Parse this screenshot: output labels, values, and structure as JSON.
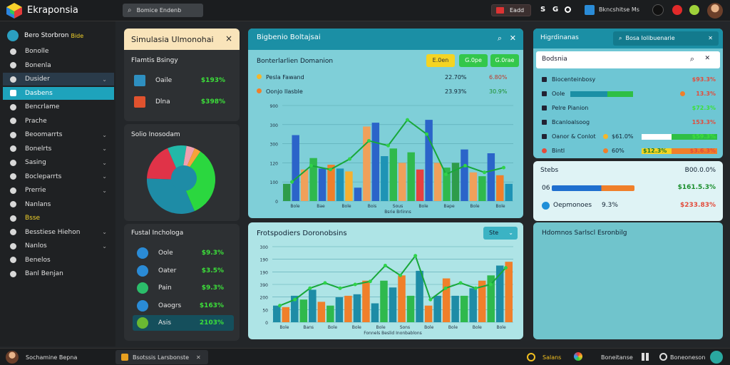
{
  "app": {
    "title": "Ekraponsia",
    "search_placeholder": "Bomice Endenb",
    "top_badge": "Eadd",
    "icon_labels": [
      "S",
      "G"
    ]
  },
  "sidebar": {
    "header": "Bero Storbron",
    "header_badge": "Bide",
    "items": [
      {
        "label": "Bonolle"
      },
      {
        "label": "Bonenla"
      },
      {
        "label": "Dusider"
      },
      {
        "label": "Dasbens"
      },
      {
        "label": "Bencrlame"
      },
      {
        "label": "Prache"
      },
      {
        "label": "Beoomarrts"
      },
      {
        "label": "Bonelrts"
      },
      {
        "label": "Sasing"
      },
      {
        "label": "Bocleparrts"
      },
      {
        "label": "Prerrie"
      },
      {
        "label": "Nanlans"
      },
      {
        "label": "Bsse"
      },
      {
        "label": "Besstiese Hiehon"
      },
      {
        "label": "Nanlos"
      },
      {
        "label": "Benelos"
      },
      {
        "label": "Banl Benjan"
      }
    ]
  },
  "panel_simulasia": {
    "title": "Simulasia Ulmonohai",
    "close": "×",
    "sub": "Flamtis Bsingy",
    "rows": [
      {
        "label": "Oaile",
        "value": "$193%"
      },
      {
        "label": "Dlna",
        "value": "$398%"
      }
    ]
  },
  "panel_pie": {
    "title": "Solio Inosodam",
    "values": [
      34,
      32,
      18,
      9,
      4,
      3
    ],
    "colors": [
      "#2bd73f",
      "#1e8ca6",
      "#e03348",
      "#22b8a8",
      "#f0a0b0",
      "#f7a23a"
    ]
  },
  "panel_fund": {
    "title": "Fustal Inchologa",
    "rows": [
      {
        "label": "Oole",
        "value": "$9.3%"
      },
      {
        "label": "Oater",
        "value": "$3.5%"
      },
      {
        "label": "Pain",
        "value": "$9.3%"
      },
      {
        "label": "Oaogrs",
        "value": "$163%"
      },
      {
        "label": "Asis",
        "value": "2103%"
      }
    ]
  },
  "panel_chart1": {
    "title": "Bigbenio Boltajsai",
    "subtitle": "Bonterlarlien Domanion",
    "tabs": [
      "E.0en",
      "G.0pe",
      "G.0rae"
    ],
    "legend": [
      {
        "label": "Pesla Fawand",
        "v1": "22.70%",
        "v2": "6.80%"
      },
      {
        "label": "Oonjo Ilasble",
        "v1": "23.93%",
        "v2": "30.9%"
      }
    ],
    "xlabels": [
      "Bole",
      "Bae",
      "Bole",
      "Bois",
      "Sous",
      "Bole",
      "Bape",
      "Bole",
      "Bole"
    ],
    "xtitle": "Bsrie Brlinns"
  },
  "panel_chart2": {
    "title": "Frotspodiers Doronobsins",
    "tab": "Ste",
    "xlabels": [
      "Bole",
      "Bans",
      "Bole",
      "Bole",
      "Bole",
      "Sons",
      "Bole",
      "Bole",
      "Bole",
      "Bole"
    ],
    "xtitle": "Fonnels Beslid Inonbablons"
  },
  "panel_hidonas": {
    "title": "Higrdinanas",
    "search": "Bosa Iolibuenarie",
    "sub": "Bodsnia",
    "rows": [
      {
        "label": "Biocenteinbosy",
        "value": "$93.3%",
        "cls": "neg"
      },
      {
        "label": "Oole",
        "value": "13.3%",
        "cls": "neg"
      },
      {
        "label": "Pelre Pianion",
        "value": "$72.3%",
        "cls": "pos"
      },
      {
        "label": "Bcanloalsoog",
        "value": "153.3%",
        "cls": "neg"
      },
      {
        "label": "Oanor & Conlot",
        "value": "$59.3%",
        "cls": "pos"
      },
      {
        "label": "Bintl",
        "value": "$3.6.3%",
        "cls": "neg"
      }
    ],
    "mid_values": [
      "$61.0%",
      "60%",
      "$12.3%"
    ]
  },
  "panel_stats": {
    "title": "Stebs",
    "title_value": "B00.0.0%",
    "row1_label": "06",
    "row1_value": "$161.5.3%",
    "row2_label": "Oepmonoes",
    "row2_mid": "9.3%",
    "row2_value": "$233.83%"
  },
  "panel_empty": {
    "title": "Hdomnos Sarlscl Esronbilg"
  },
  "statusbar": {
    "left": "Sochamine Bepna",
    "mid": "Bsotssis Larsbonste",
    "right1": "Salans",
    "right2": "Boneitanse",
    "right3": "Boneoneson"
  }
}
